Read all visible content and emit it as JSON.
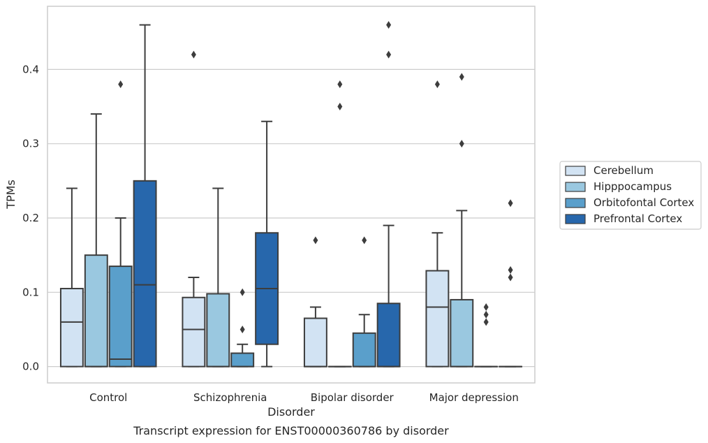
{
  "chart_data": {
    "type": "box",
    "title": "",
    "caption": "Transcript expression for ENST00000360786 by disorder",
    "xlabel": "Disorder",
    "ylabel": "TPMs",
    "ylim": [
      -0.022,
      0.485
    ],
    "yticks": [
      0.0,
      0.1,
      0.2,
      0.3,
      0.4
    ],
    "ytick_labels": [
      "0.0",
      "0.1",
      "0.2",
      "0.3",
      "0.4"
    ],
    "grid": "horizontal",
    "legend_position": "right",
    "categories": [
      "Control",
      "Schizophrenia",
      "Bipolar disorder",
      "Major depression"
    ],
    "series": [
      {
        "name": "Cerebellum",
        "color": "#d2e3f3",
        "boxes": [
          {
            "q1": 0.0,
            "median": 0.06,
            "q3": 0.105,
            "whisker_low": 0.0,
            "whisker_high": 0.24,
            "outliers": []
          },
          {
            "q1": 0.0,
            "median": 0.05,
            "q3": 0.093,
            "whisker_low": 0.0,
            "whisker_high": 0.12,
            "outliers": [
              0.42
            ]
          },
          {
            "q1": 0.0,
            "median": 0.0,
            "q3": 0.065,
            "whisker_low": 0.0,
            "whisker_high": 0.08,
            "outliers": [
              0.17
            ]
          },
          {
            "q1": 0.0,
            "median": 0.08,
            "q3": 0.129,
            "whisker_low": 0.0,
            "whisker_high": 0.18,
            "outliers": [
              0.38
            ]
          }
        ]
      },
      {
        "name": "Hipppocampus",
        "color": "#9ac8e0",
        "boxes": [
          {
            "q1": 0.0,
            "median": 0.0,
            "q3": 0.15,
            "whisker_low": 0.0,
            "whisker_high": 0.34,
            "outliers": []
          },
          {
            "q1": 0.0,
            "median": 0.0,
            "q3": 0.098,
            "whisker_low": 0.0,
            "whisker_high": 0.24,
            "outliers": []
          },
          {
            "q1": 0.0,
            "median": 0.0,
            "q3": 0.0,
            "whisker_low": 0.0,
            "whisker_high": 0.0,
            "outliers": [
              0.35,
              0.38
            ]
          },
          {
            "q1": 0.0,
            "median": 0.0,
            "q3": 0.09,
            "whisker_low": 0.0,
            "whisker_high": 0.21,
            "outliers": [
              0.3,
              0.39
            ]
          }
        ]
      },
      {
        "name": "Orbitofontal Cortex",
        "color": "#5a9fcb",
        "boxes": [
          {
            "q1": 0.0,
            "median": 0.01,
            "q3": 0.135,
            "whisker_low": 0.0,
            "whisker_high": 0.2,
            "outliers": [
              0.38
            ]
          },
          {
            "q1": 0.0,
            "median": 0.0,
            "q3": 0.018,
            "whisker_low": 0.0,
            "whisker_high": 0.03,
            "outliers": [
              0.05,
              0.1
            ]
          },
          {
            "q1": 0.0,
            "median": 0.0,
            "q3": 0.045,
            "whisker_low": 0.0,
            "whisker_high": 0.07,
            "outliers": [
              0.17
            ]
          },
          {
            "q1": 0.0,
            "median": 0.0,
            "q3": 0.0,
            "whisker_low": 0.0,
            "whisker_high": 0.0,
            "outliers": [
              0.06,
              0.07,
              0.08
            ]
          }
        ]
      },
      {
        "name": "Prefrontal Cortex",
        "color": "#2767ac",
        "boxes": [
          {
            "q1": 0.0,
            "median": 0.11,
            "q3": 0.25,
            "whisker_low": 0.0,
            "whisker_high": 0.46,
            "outliers": []
          },
          {
            "q1": 0.03,
            "median": 0.105,
            "q3": 0.18,
            "whisker_low": 0.0,
            "whisker_high": 0.33,
            "outliers": []
          },
          {
            "q1": 0.0,
            "median": 0.0,
            "q3": 0.085,
            "whisker_low": 0.0,
            "whisker_high": 0.19,
            "outliers": [
              0.42,
              0.46
            ]
          },
          {
            "q1": 0.0,
            "median": 0.0,
            "q3": 0.0,
            "whisker_low": 0.0,
            "whisker_high": 0.0,
            "outliers": [
              0.12,
              0.13,
              0.22
            ]
          }
        ]
      }
    ]
  }
}
